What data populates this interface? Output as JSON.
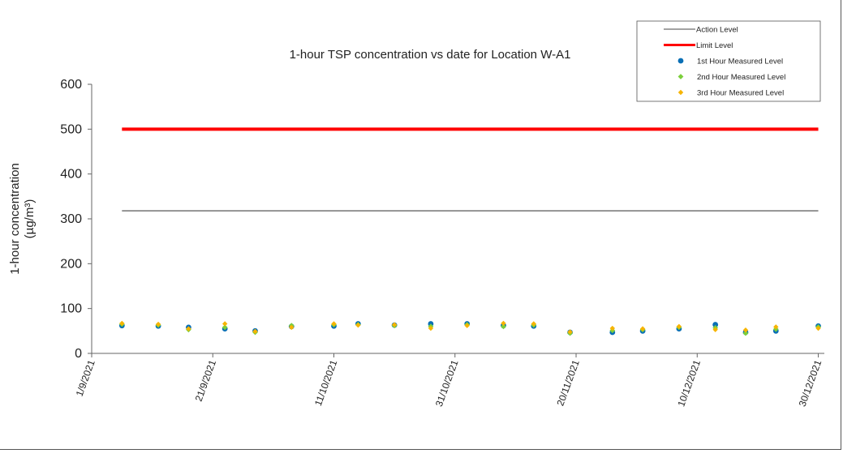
{
  "chart_data": {
    "type": "scatter",
    "title": "1-hour TSP concentration vs date for Location W-A1",
    "xlabel": "",
    "ylabel": "1-hour concentration",
    "ylabel_unit": "(µg/m³)",
    "ylim": [
      0,
      600
    ],
    "yticks": [
      0,
      100,
      200,
      300,
      400,
      500,
      600
    ],
    "xlim": [
      "2021-09-01",
      "2021-12-31"
    ],
    "xticks": [
      {
        "date": "2021-09-01",
        "label": "1/9/2021"
      },
      {
        "date": "2021-09-21",
        "label": "21/9/2021"
      },
      {
        "date": "2021-10-11",
        "label": "11/10/2021"
      },
      {
        "date": "2021-10-31",
        "label": "31/10/2021"
      },
      {
        "date": "2021-11-20",
        "label": "20/11/2021"
      },
      {
        "date": "2021-12-10",
        "label": "10/12/2021"
      },
      {
        "date": "2021-12-30",
        "label": "30/12/2021"
      }
    ],
    "grid": false,
    "legend_position": "top-right",
    "lines": [
      {
        "name": "Action Level",
        "color": "#444444",
        "x": [
          "2021-09-06",
          "2021-12-30"
        ],
        "y": [
          318,
          318
        ]
      },
      {
        "name": "Limit Level",
        "color": "#ff0000",
        "x": [
          "2021-09-06",
          "2021-12-30"
        ],
        "y": [
          500,
          500
        ]
      }
    ],
    "x": [
      "2021-09-06",
      "2021-09-12",
      "2021-09-17",
      "2021-09-23",
      "2021-09-28",
      "2021-10-04",
      "2021-10-11",
      "2021-10-15",
      "2021-10-21",
      "2021-10-27",
      "2021-11-02",
      "2021-11-08",
      "2021-11-13",
      "2021-11-19",
      "2021-11-26",
      "2021-12-01",
      "2021-12-07",
      "2021-12-13",
      "2021-12-18",
      "2021-12-23",
      "2021-12-30"
    ],
    "series": [
      {
        "name": "1st Hour Measured Level",
        "color": "#0a6fb5",
        "values": [
          62,
          61,
          58,
          55,
          50,
          60,
          61,
          66,
          63,
          66,
          66,
          62,
          61,
          47,
          47,
          50,
          55,
          64,
          47,
          50,
          61
        ]
      },
      {
        "name": "2nd Hour Measured Level",
        "color": "#7ccf3c",
        "values": [
          65,
          63,
          53,
          58,
          47,
          62,
          64,
          64,
          62,
          60,
          64,
          60,
          63,
          45,
          51,
          53,
          58,
          57,
          45,
          54,
          59
        ]
      },
      {
        "name": "3rd Hour Measured Level",
        "color": "#f6b400",
        "values": [
          67,
          65,
          55,
          66,
          49,
          58,
          66,
          63,
          64,
          56,
          62,
          67,
          66,
          48,
          56,
          55,
          60,
          53,
          52,
          59,
          56
        ]
      }
    ]
  }
}
